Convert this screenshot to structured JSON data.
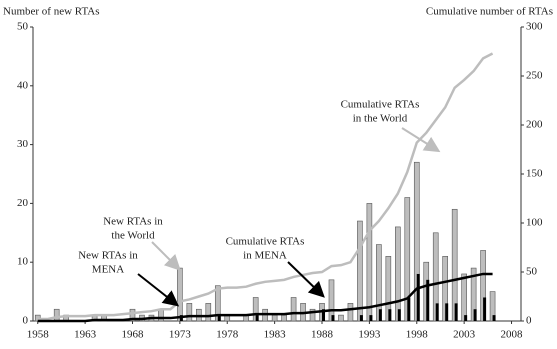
{
  "chart_data": {
    "type": "combo",
    "y_label": "Number of new RTAs",
    "y2_label": "Cumulative number of RTAs",
    "x": [
      1958,
      1959,
      1960,
      1961,
      1962,
      1963,
      1964,
      1965,
      1966,
      1967,
      1968,
      1969,
      1970,
      1971,
      1972,
      1973,
      1974,
      1975,
      1976,
      1977,
      1978,
      1979,
      1980,
      1981,
      1982,
      1983,
      1984,
      1985,
      1986,
      1987,
      1988,
      1989,
      1990,
      1991,
      1992,
      1993,
      1994,
      1995,
      1996,
      1997,
      1998,
      1999,
      2000,
      2001,
      2002,
      2003,
      2004,
      2005,
      2006
    ],
    "xlim": [
      1957.5,
      2009
    ],
    "xticks": [
      1958,
      1963,
      1968,
      1973,
      1978,
      1983,
      1988,
      1993,
      1998,
      2003,
      2008
    ],
    "ylim": [
      0,
      50
    ],
    "yticks": [
      0,
      10,
      20,
      30,
      40,
      50
    ],
    "y2lim": [
      0,
      300
    ],
    "y2ticks": [
      0,
      50,
      100,
      150,
      200,
      250,
      300
    ],
    "series": [
      {
        "name": "New RTAs in the World",
        "kind": "bar",
        "color": "#bdbdbd",
        "values": [
          1,
          0,
          2,
          1,
          0,
          0,
          1,
          1,
          0,
          0,
          2,
          1,
          1,
          2,
          0,
          9,
          3,
          2,
          3,
          6,
          1,
          0,
          1,
          4,
          2,
          1,
          1,
          4,
          3,
          2,
          3,
          7,
          1,
          3,
          17,
          20,
          13,
          11,
          16,
          21,
          27,
          10,
          15,
          11,
          19,
          8,
          9,
          12,
          5
        ]
      },
      {
        "name": "New RTAs in MENA",
        "kind": "bar",
        "color": "#000000",
        "values": [
          0,
          0,
          0,
          0,
          0,
          0,
          0,
          0,
          0,
          0,
          0,
          0,
          0,
          0,
          0,
          1,
          0,
          0,
          0,
          1,
          0,
          0,
          0,
          1,
          0,
          0,
          0,
          0,
          0,
          0,
          2,
          1,
          0,
          0,
          1,
          1,
          2,
          2,
          2,
          4,
          8,
          7,
          3,
          3,
          3,
          1,
          2,
          4,
          1
        ]
      },
      {
        "name": "Cumulative RTAs in the World",
        "kind": "line",
        "axis": "y2",
        "color": "#bdbdbd",
        "values": [
          2,
          2,
          4,
          5,
          5,
          5,
          6,
          6,
          6,
          7,
          8,
          9,
          10,
          12,
          12,
          20,
          22,
          25,
          28,
          33,
          34,
          34,
          35,
          38,
          40,
          41,
          42,
          45,
          47,
          49,
          50,
          56,
          57,
          60,
          75,
          92,
          102,
          115,
          130,
          152,
          182,
          192,
          205,
          218,
          238,
          246,
          255,
          268,
          273
        ]
      },
      {
        "name": "Cumulative RTAs in MENA",
        "kind": "line",
        "axis": "y2",
        "color": "#000000",
        "values": [
          0,
          0,
          0,
          0,
          0,
          0,
          1,
          1,
          1,
          1,
          2,
          2,
          3,
          3,
          3,
          4,
          5,
          5,
          5,
          6,
          6,
          6,
          6,
          7,
          7,
          7,
          7,
          8,
          8,
          9,
          10,
          11,
          11,
          12,
          13,
          14,
          16,
          18,
          20,
          23,
          33,
          36,
          38,
          40,
          42,
          44,
          46,
          48,
          48
        ]
      }
    ],
    "annotations": [
      [
        "Cumulative RTAs",
        "in the World"
      ],
      [
        "New RTAs in",
        "the World"
      ],
      [
        "New RTAs in",
        "MENA"
      ],
      [
        "Cumulative RTAs",
        "in MENA"
      ]
    ]
  }
}
